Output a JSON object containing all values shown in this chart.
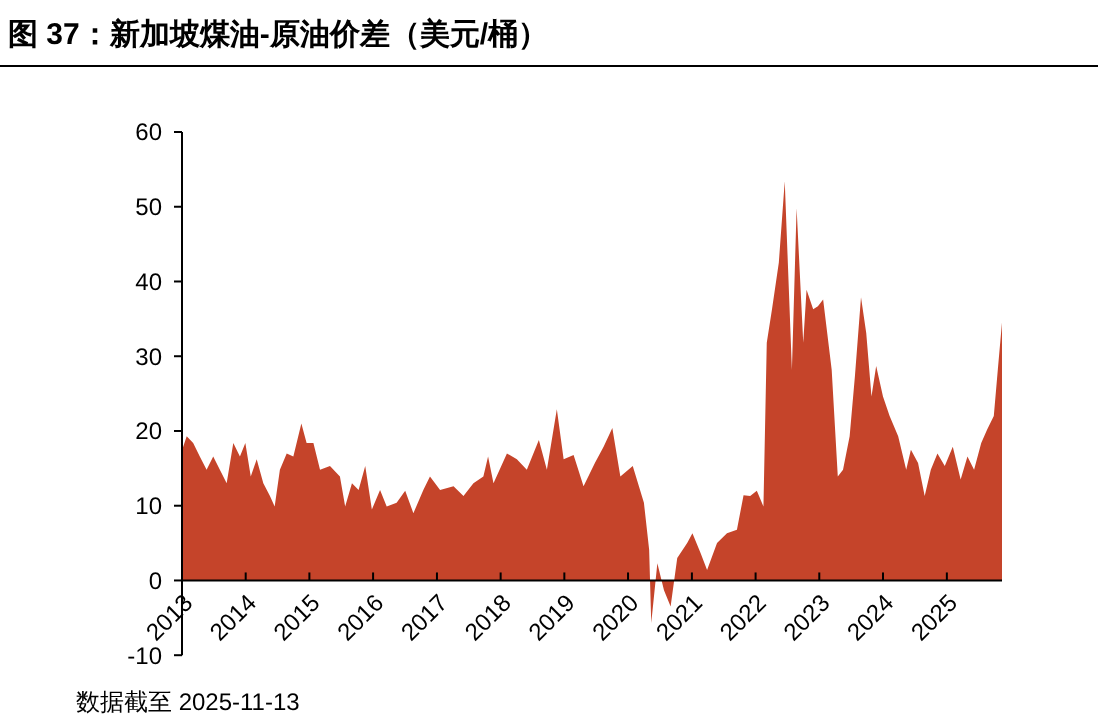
{
  "chart_data": {
    "type": "area",
    "title": "图 37：新加坡煤油-原油价差（美元/桶）",
    "annotations": [
      "数据截至 2025-11-13"
    ],
    "x": [
      "2013-01-02",
      "2013-01-28",
      "2013-03-06",
      "2013-04-13",
      "2013-05-22",
      "2013-06-29",
      "2013-08-06",
      "2013-09-14",
      "2013-10-22",
      "2013-11-29",
      "2013-12-30",
      "2014-01-30",
      "2014-03-05",
      "2014-04-12",
      "2014-05-20",
      "2014-06-16",
      "2014-07-16",
      "2014-08-24",
      "2014-10-01",
      "2014-11-16",
      "2014-12-16",
      "2015-01-24",
      "2015-03-03",
      "2015-04-29",
      "2015-06-25",
      "2015-07-25",
      "2015-09-02",
      "2015-10-10",
      "2015-11-17",
      "2015-12-25",
      "2016-02-10",
      "2016-03-19",
      "2016-05-15",
      "2016-07-03",
      "2016-08-19",
      "2016-10-15",
      "2016-11-22",
      "2017-01-19",
      "2017-04-06",
      "2017-06-02",
      "2017-07-29",
      "2017-09-24",
      "2017-10-21",
      "2017-11-21",
      "2018-02-06",
      "2018-04-04",
      "2018-05-31",
      "2018-08-08",
      "2018-09-23",
      "2018-11-19",
      "2018-12-28",
      "2019-02-23",
      "2019-04-21",
      "2019-06-25",
      "2019-08-14",
      "2019-10-03",
      "2019-11-18",
      "2020-01-28",
      "2020-04-01",
      "2020-05-01",
      "2020-05-13",
      "2020-06-17",
      "2020-07-25",
      "2020-09-01",
      "2020-10-09",
      "2020-12-05",
      "2021-01-04",
      "2021-02-19",
      "2021-03-29",
      "2021-05-25",
      "2021-07-21",
      "2021-09-16",
      "2021-10-24",
      "2021-12-01",
      "2022-01-08",
      "2022-02-15",
      "2022-03-06",
      "2022-04-05",
      "2022-05-14",
      "2022-06-17",
      "2022-07-28",
      "2022-08-24",
      "2022-10-01",
      "2022-10-20",
      "2022-11-27",
      "2022-12-24",
      "2023-01-23",
      "2023-03-13",
      "2023-04-17",
      "2023-05-17",
      "2023-06-24",
      "2023-07-24",
      "2023-08-28",
      "2023-09-27",
      "2023-10-27",
      "2023-11-23",
      "2024-01-01",
      "2024-02-08",
      "2024-03-28",
      "2024-05-13",
      "2024-06-09",
      "2024-07-20",
      "2024-08-27",
      "2024-10-01",
      "2024-11-08",
      "2024-12-20",
      "2025-02-04",
      "2025-03-21",
      "2025-04-29",
      "2025-06-06",
      "2025-07-17",
      "2025-08-20",
      "2025-09-27",
      "2025-10-20",
      "2025-11-13"
    ],
    "series": [
      {
        "color": "#c5442a",
        "values": [
          17.5,
          19.3,
          18.4,
          16.6,
          14.8,
          16.6,
          14.8,
          13,
          18.4,
          16.6,
          18.4,
          13.9,
          16.2,
          13,
          11.3,
          9.9,
          14.8,
          17,
          16.6,
          21,
          18.4,
          18.4,
          14.8,
          15.3,
          13.9,
          9.9,
          13,
          12.1,
          15.3,
          9.5,
          12.1,
          9.9,
          10.4,
          12,
          9,
          12.1,
          13.9,
          12.1,
          12.6,
          11.3,
          13,
          13.9,
          16.6,
          13,
          17,
          16.2,
          14.8,
          18.8,
          14.8,
          22.9,
          16.2,
          16.8,
          12.6,
          15.7,
          17.9,
          20.4,
          13.9,
          15.3,
          10.4,
          4.1,
          -5.7,
          2.3,
          -1.3,
          -3.5,
          3,
          5,
          6.3,
          3.7,
          1.4,
          5,
          6.3,
          6.8,
          11.4,
          11.3,
          12,
          9.9,
          31.8,
          36.3,
          42.5,
          53.4,
          28.2,
          49.8,
          31.8,
          38.9,
          36.3,
          36.7,
          37.6,
          28.2,
          13.9,
          14.8,
          19.3,
          27.3,
          37.9,
          33.1,
          24.6,
          28.7,
          24.6,
          22,
          19.3,
          14.8,
          17.5,
          15.7,
          11.3,
          14.8,
          17,
          15.3,
          17.9,
          13.5,
          16.6,
          14.8,
          18.4,
          20.2,
          22,
          28.2,
          34.5
        ]
      }
    ],
    "xlim": [
      "2013-01-01",
      "2025-11-13"
    ],
    "xticks": [
      "2013",
      "2014",
      "2015",
      "2016",
      "2017",
      "2018",
      "2019",
      "2020",
      "2021",
      "2022",
      "2023",
      "2024",
      "2025"
    ],
    "ylim": [
      -10,
      60
    ],
    "yticks": [
      -10,
      0,
      10,
      20,
      30,
      40,
      50,
      60
    ]
  }
}
